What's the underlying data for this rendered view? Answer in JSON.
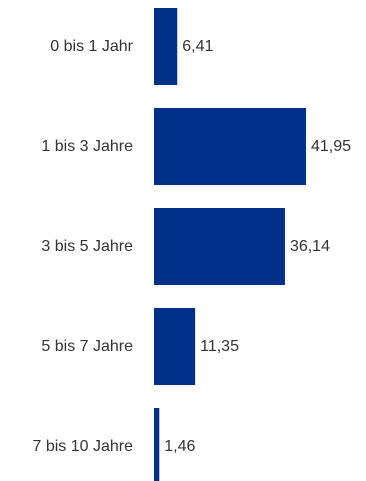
{
  "chart_data": {
    "type": "bar",
    "orientation": "horizontal",
    "categories": [
      "0 bis 1 Jahr",
      "1 bis 3 Jahre",
      "3 bis 5 Jahre",
      "5 bis 7 Jahre",
      "7 bis 10 Jahre"
    ],
    "values": [
      6.41,
      41.95,
      36.14,
      11.35,
      1.46
    ],
    "value_labels": [
      "6,41",
      "41,95",
      "36,14",
      "11,35",
      "1,46"
    ],
    "title": "",
    "xlabel": "",
    "ylabel": "",
    "xlim": [
      0,
      41.95
    ],
    "grid": false,
    "legend": "none",
    "bar_color": "#003087"
  }
}
